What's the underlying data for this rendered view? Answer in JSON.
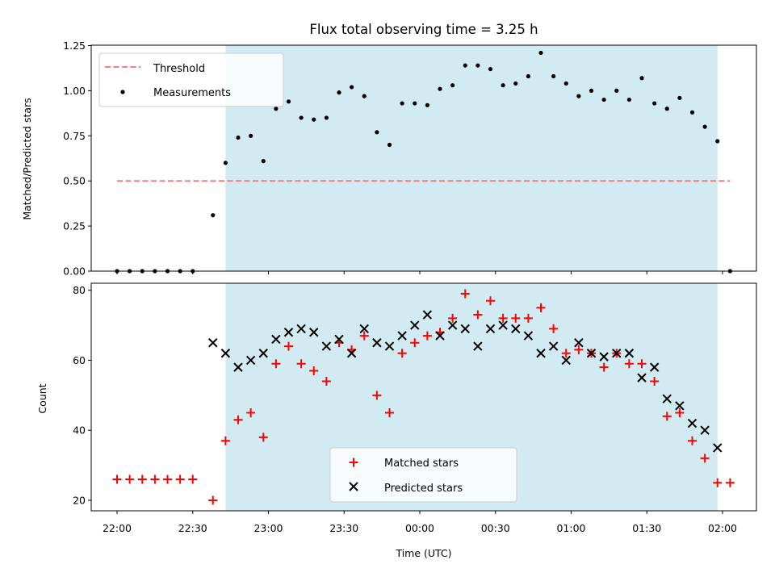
{
  "chart_data": [
    {
      "type": "scatter",
      "panel": "top",
      "title": "Flux total observing time = 3.25 h",
      "ylabel": "Matched/Predicted stars",
      "xlabel": "",
      "ylim": [
        0,
        1.25
      ],
      "y_ticks": [
        "0.00",
        "0.25",
        "0.50",
        "0.75",
        "1.00",
        "1.25"
      ],
      "legend": {
        "placement": "upper left",
        "entries": [
          "Threshold",
          "Measurements"
        ]
      },
      "threshold": {
        "name": "Threshold",
        "value": 0.5,
        "x_start": "22:00",
        "x_end": "02:03",
        "color": "#f08080"
      },
      "shaded_region": {
        "x_start": "22:43",
        "x_end": "01:58",
        "color": "#add8e6"
      },
      "series": [
        {
          "name": "Measurements",
          "color": "#000000",
          "x": [
            "22:00",
            "22:05",
            "22:10",
            "22:15",
            "22:20",
            "22:25",
            "22:30",
            "22:38",
            "22:43",
            "22:48",
            "22:53",
            "22:58",
            "23:03",
            "23:08",
            "23:13",
            "23:18",
            "23:23",
            "23:28",
            "23:33",
            "23:38",
            "23:43",
            "23:48",
            "23:53",
            "23:58",
            "00:03",
            "00:08",
            "00:13",
            "00:18",
            "00:23",
            "00:28",
            "00:33",
            "00:38",
            "00:43",
            "00:48",
            "00:53",
            "00:58",
            "01:03",
            "01:08",
            "01:13",
            "01:18",
            "01:23",
            "01:28",
            "01:33",
            "01:38",
            "01:43",
            "01:48",
            "01:53",
            "01:58",
            "02:03"
          ],
          "y": [
            0,
            0,
            0,
            0,
            0,
            0,
            0,
            0.31,
            0.6,
            0.74,
            0.75,
            0.61,
            0.9,
            0.94,
            0.85,
            0.84,
            0.85,
            0.99,
            1.02,
            0.97,
            0.77,
            0.7,
            0.93,
            0.93,
            0.92,
            1.01,
            1.03,
            1.14,
            1.14,
            1.12,
            1.03,
            1.04,
            1.08,
            1.21,
            1.08,
            1.04,
            0.97,
            1.0,
            0.95,
            1.0,
            0.95,
            1.07,
            0.93,
            0.9,
            0.96,
            0.88,
            0.8,
            0.72,
            0
          ]
        }
      ]
    },
    {
      "type": "scatter",
      "panel": "bottom",
      "xlabel": "Time (UTC)",
      "ylabel": "Count",
      "ylim": [
        17,
        82
      ],
      "y_ticks": [
        "20",
        "40",
        "60",
        "80"
      ],
      "x_ticks": [
        "22:00",
        "22:30",
        "23:00",
        "23:30",
        "00:00",
        "00:30",
        "01:00",
        "01:30",
        "02:00"
      ],
      "legend": {
        "placement": "lower center",
        "entries": [
          "Matched stars",
          "Predicted stars"
        ]
      },
      "shaded_region": {
        "x_start": "22:43",
        "x_end": "01:58",
        "color": "#add8e6"
      },
      "series": [
        {
          "name": "Matched stars",
          "marker": "+",
          "color": "#ff0000",
          "x": [
            "22:00",
            "22:05",
            "22:10",
            "22:15",
            "22:20",
            "22:25",
            "22:30",
            "22:38",
            "22:43",
            "22:48",
            "22:53",
            "22:58",
            "23:03",
            "23:08",
            "23:13",
            "23:18",
            "23:23",
            "23:28",
            "23:33",
            "23:38",
            "23:43",
            "23:48",
            "23:53",
            "23:58",
            "00:03",
            "00:08",
            "00:13",
            "00:18",
            "00:23",
            "00:28",
            "00:33",
            "00:38",
            "00:43",
            "00:48",
            "00:53",
            "00:58",
            "01:03",
            "01:08",
            "01:13",
            "01:18",
            "01:23",
            "01:28",
            "01:33",
            "01:38",
            "01:43",
            "01:48",
            "01:53",
            "01:58",
            "02:03"
          ],
          "y": [
            26,
            26,
            26,
            26,
            26,
            26,
            26,
            20,
            37,
            43,
            45,
            38,
            59,
            64,
            59,
            57,
            54,
            65,
            63,
            67,
            50,
            45,
            62,
            65,
            67,
            68,
            72,
            79,
            73,
            77,
            72,
            72,
            72,
            75,
            69,
            62,
            63,
            62,
            58,
            62,
            59,
            59,
            54,
            44,
            45,
            37,
            32,
            25,
            25
          ]
        },
        {
          "name": "Predicted stars",
          "marker": "x",
          "color": "#000000",
          "x": [
            "22:38",
            "22:43",
            "22:48",
            "22:53",
            "22:58",
            "23:03",
            "23:08",
            "23:13",
            "23:18",
            "23:23",
            "23:28",
            "23:33",
            "23:38",
            "23:43",
            "23:48",
            "23:53",
            "23:58",
            "00:03",
            "00:08",
            "00:13",
            "00:18",
            "00:23",
            "00:28",
            "00:33",
            "00:38",
            "00:43",
            "00:48",
            "00:53",
            "00:58",
            "01:03",
            "01:08",
            "01:13",
            "01:18",
            "01:23",
            "01:28",
            "01:33",
            "01:38",
            "01:43",
            "01:48",
            "01:53",
            "01:58"
          ],
          "y": [
            65,
            62,
            58,
            60,
            62,
            66,
            68,
            69,
            68,
            64,
            66,
            62,
            69,
            65,
            64,
            67,
            70,
            73,
            67,
            70,
            69,
            64,
            69,
            70,
            69,
            67,
            62,
            64,
            60,
            65,
            62,
            61,
            62,
            62,
            55,
            58,
            49,
            47,
            42,
            40,
            35
          ]
        }
      ]
    }
  ]
}
